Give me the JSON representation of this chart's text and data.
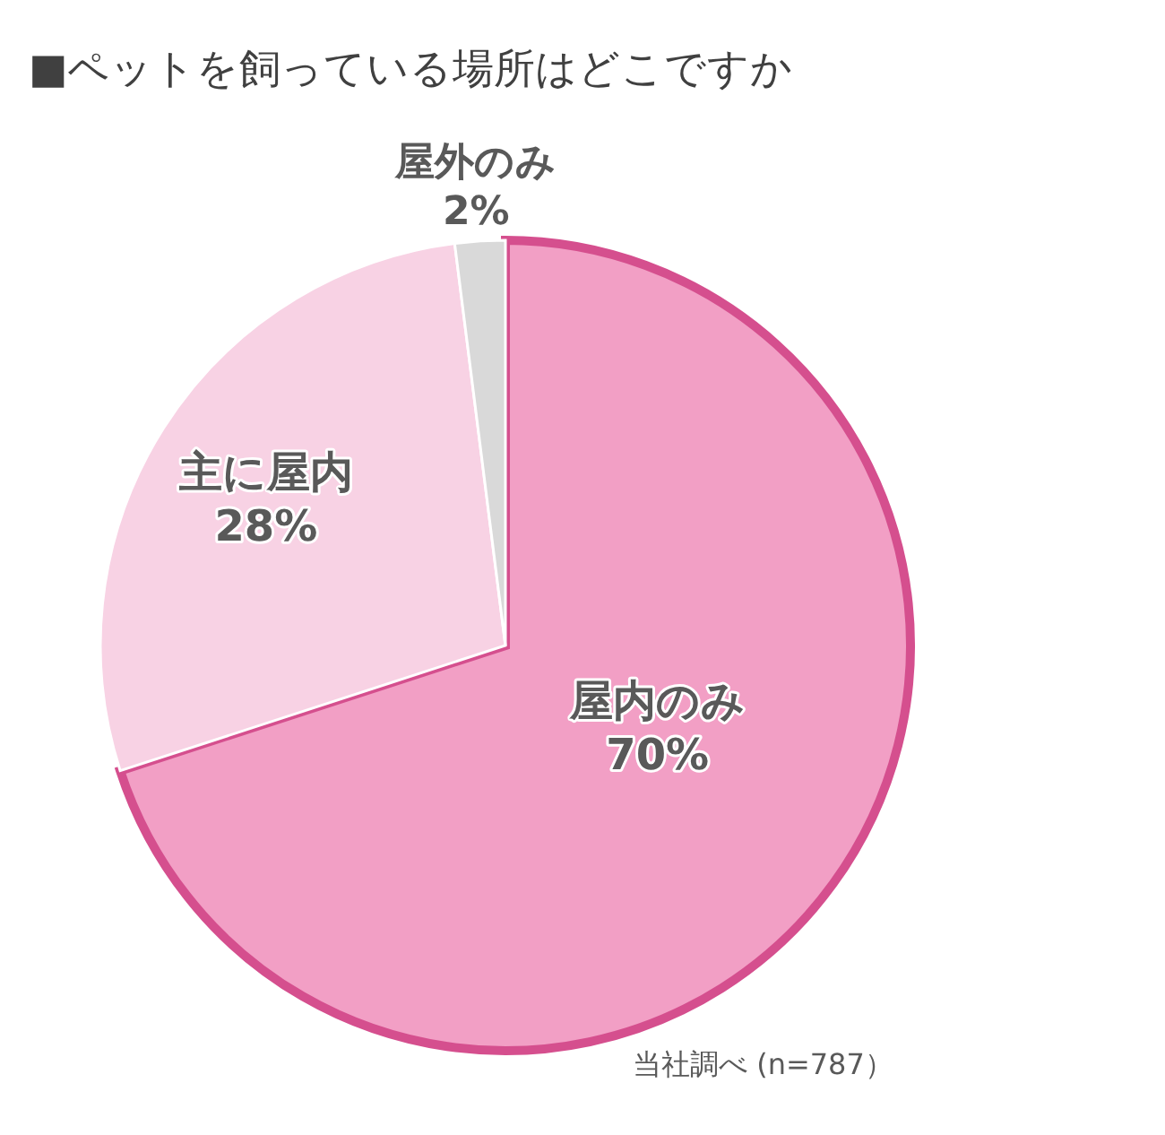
{
  "chart_data": {
    "type": "pie",
    "title": "■ペットを飼っている場所はどこですか",
    "categories": [
      "屋内のみ",
      "主に屋内",
      "屋外のみ"
    ],
    "values": [
      70,
      28,
      2
    ],
    "value_labels": [
      "70%",
      "28%",
      "2%"
    ],
    "colors": [
      "#f29fc5",
      "#f8d2e4",
      "#d9d9d9"
    ],
    "annotations": [
      "当社調べ (n=787）"
    ]
  }
}
